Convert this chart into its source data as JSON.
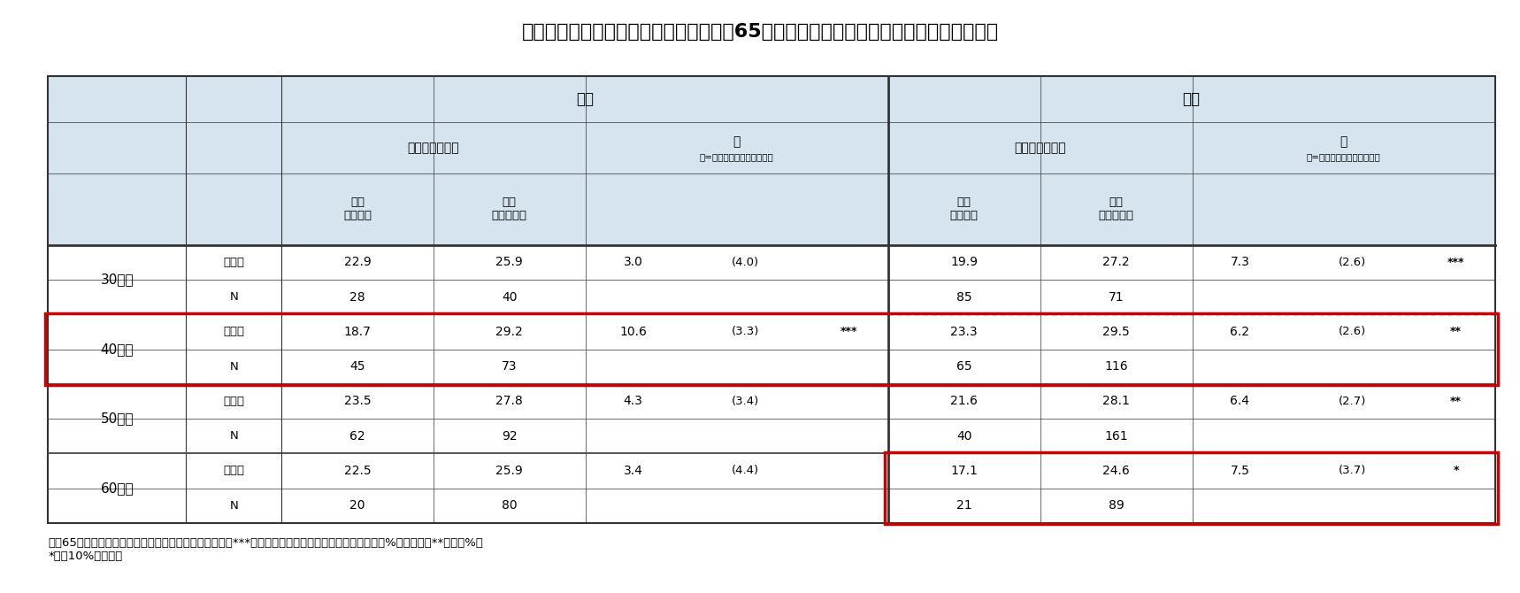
{
  "title": "図表４：ねんきん定期便に関する知識と65歳時点必要金融資産の違い（単位：百万円）",
  "header_bg": "#d6e4f0",
  "table_bg": "#ffffff",
  "outer_bg": "#ffffff",
  "border_color": "#333333",
  "red_border_color": "#cc0000",
  "dotted_border_color": "#555555",
  "col_header_male": "男性",
  "col_header_female": "女性",
  "col_header_nenkinkk": "ねんきん定期便",
  "col_header_diff": "差",
  "col_header_diff_sub": "（=知っている－知らない）",
  "col_header_yoku_shiranai": "良く\n知らない",
  "col_header_yoku_shitteiru": "良く\n知っている",
  "rows": [
    {
      "age": "30歳代",
      "type": [
        "平均値",
        "N"
      ],
      "male_shiranai": [
        "22.9",
        "28"
      ],
      "male_shitteiru": [
        "25.9",
        "40"
      ],
      "male_diff": [
        "3.0",
        ""
      ],
      "male_diff_se": [
        "(4.0)",
        ""
      ],
      "male_sig": [
        "",
        ""
      ],
      "female_shiranai": [
        "19.9",
        "85"
      ],
      "female_shitteiru": [
        "27.2",
        "71"
      ],
      "female_diff": [
        "7.3",
        ""
      ],
      "female_diff_se": [
        "(2.6)",
        ""
      ],
      "female_sig": [
        "***",
        ""
      ],
      "red_border": false,
      "dotted_top": false,
      "dotted_bottom": false
    },
    {
      "age": "40歳代",
      "type": [
        "平均値",
        "N"
      ],
      "male_shiranai": [
        "18.7",
        "45"
      ],
      "male_shitteiru": [
        "29.2",
        "73"
      ],
      "male_diff": [
        "10.6",
        ""
      ],
      "male_diff_se": [
        "(3.3)",
        ""
      ],
      "male_sig": [
        "***",
        ""
      ],
      "female_shiranai": [
        "23.3",
        "65"
      ],
      "female_shitteiru": [
        "29.5",
        "116"
      ],
      "female_diff": [
        "6.2",
        ""
      ],
      "female_diff_se": [
        "(2.6)",
        ""
      ],
      "female_sig": [
        "**",
        ""
      ],
      "red_border": true,
      "dotted_top": true,
      "dotted_bottom": false
    },
    {
      "age": "50歳代",
      "type": [
        "平均値",
        "N"
      ],
      "male_shiranai": [
        "23.5",
        "62"
      ],
      "male_shitteiru": [
        "27.8",
        "92"
      ],
      "male_diff": [
        "4.3",
        ""
      ],
      "male_diff_se": [
        "(3.4)",
        ""
      ],
      "male_sig": [
        "",
        ""
      ],
      "female_shiranai": [
        "21.6",
        "40"
      ],
      "female_shitteiru": [
        "28.1",
        "161"
      ],
      "female_diff": [
        "6.4",
        ""
      ],
      "female_diff_se": [
        "(2.7)",
        ""
      ],
      "female_sig": [
        "**",
        ""
      ],
      "red_border": false,
      "dotted_top": false,
      "dotted_bottom": true
    },
    {
      "age": "60歳代",
      "type": [
        "平均値",
        "N"
      ],
      "male_shiranai": [
        "22.5",
        "20"
      ],
      "male_shitteiru": [
        "25.9",
        "80"
      ],
      "male_diff": [
        "3.4",
        ""
      ],
      "male_diff_se": [
        "(4.4)",
        ""
      ],
      "male_sig": [
        "",
        ""
      ],
      "female_shiranai": [
        "17.1",
        "21"
      ],
      "female_shitteiru": [
        "24.6",
        "89"
      ],
      "female_diff": [
        "7.5",
        ""
      ],
      "female_diff_se": [
        "(3.7)",
        ""
      ],
      "female_sig": [
        "*",
        ""
      ],
      "red_border": true,
      "dotted_top": false,
      "dotted_bottom": false
    }
  ],
  "footnote": "注：65歳に必要だと考える金融資産額の単位は百万円、***はウエルチ法による平均値の差の検定で１%有意水準、**は同５%、\n*は同10%を表す。"
}
